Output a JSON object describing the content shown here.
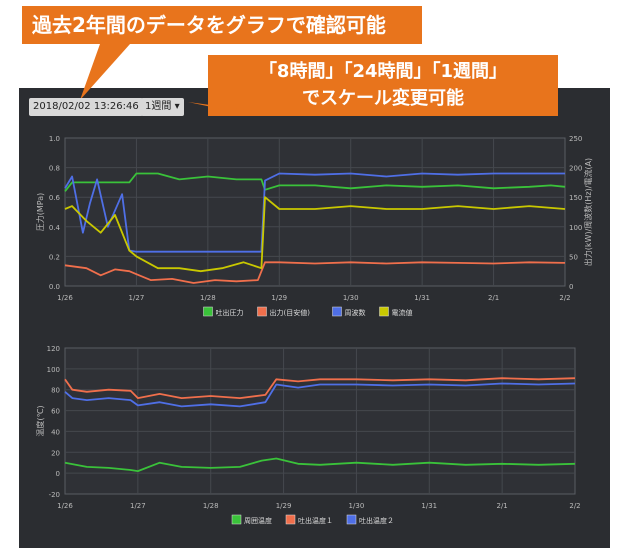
{
  "callouts": {
    "top": "過去2年間のデータをグラフで確認可能",
    "scale_line1": "「8時間」「24時間」「1週間」",
    "scale_line2": "でスケール変更可能"
  },
  "toolbar": {
    "datetime": "2018/02/02 13:26:46",
    "range_label": "1週間",
    "range_caret": "▾"
  },
  "colors": {
    "green": "#3ac23a",
    "red": "#f06f4c",
    "blue": "#4f6fe6",
    "yellow": "#c9c800"
  },
  "chart_data": [
    {
      "type": "line",
      "ylabel": "圧力(MPa)",
      "y2label": "出力(kW)/周波数(Hz)/電流(A)",
      "ylim": [
        0,
        1.0
      ],
      "yticks": [
        "0.0",
        "0.2",
        "0.4",
        "0.6",
        "0.8",
        "1.0"
      ],
      "y2lim": [
        0,
        250
      ],
      "y2ticks": [
        "0",
        "50",
        "100",
        "150",
        "200",
        "250"
      ],
      "xticks": [
        "1/26",
        "1/27",
        "1/28",
        "1/29",
        "1/30",
        "1/31",
        "2/1",
        "2/2"
      ],
      "xlim": [
        0,
        7
      ],
      "legend_position": "bottom",
      "series": [
        {
          "name": "吐出圧力",
          "axis": "left",
          "color": "green",
          "x": [
            0,
            0.1,
            0.3,
            0.6,
            0.9,
            1.0,
            1.3,
            1.6,
            2.0,
            2.4,
            2.75,
            2.8,
            3.0,
            3.5,
            4.0,
            4.5,
            5.0,
            5.5,
            6.0,
            6.5,
            6.8,
            7.0
          ],
          "y": [
            0.64,
            0.7,
            0.7,
            0.7,
            0.7,
            0.76,
            0.76,
            0.72,
            0.74,
            0.72,
            0.72,
            0.65,
            0.68,
            0.68,
            0.66,
            0.68,
            0.67,
            0.68,
            0.66,
            0.67,
            0.68,
            0.67
          ]
        },
        {
          "name": "出力(目安値)",
          "axis": "right",
          "color": "red",
          "x": [
            0,
            0.3,
            0.5,
            0.7,
            0.9,
            1.0,
            1.2,
            1.5,
            1.8,
            2.1,
            2.4,
            2.7,
            2.8,
            3.0,
            3.5,
            4.0,
            4.5,
            5.0,
            5.5,
            6.0,
            6.5,
            7.0
          ],
          "y": [
            35,
            30,
            18,
            28,
            25,
            20,
            10,
            12,
            5,
            10,
            8,
            10,
            40,
            40,
            38,
            40,
            38,
            40,
            39,
            38,
            40,
            39
          ]
        },
        {
          "name": "周波数",
          "axis": "right",
          "color": "blue",
          "x": [
            0,
            0.1,
            0.25,
            0.35,
            0.45,
            0.6,
            0.8,
            0.9,
            1.0,
            2.0,
            2.75,
            2.8,
            3.0,
            3.5,
            4.0,
            4.5,
            5.0,
            5.5,
            6.0,
            6.5,
            7.0
          ],
          "y": [
            165,
            185,
            90,
            140,
            180,
            100,
            155,
            60,
            58,
            58,
            58,
            178,
            190,
            188,
            190,
            185,
            190,
            188,
            190,
            190,
            190
          ]
        },
        {
          "name": "電流値",
          "axis": "right",
          "color": "yellow",
          "x": [
            0,
            0.1,
            0.3,
            0.5,
            0.7,
            0.9,
            1.0,
            1.3,
            1.6,
            1.9,
            2.2,
            2.5,
            2.75,
            2.8,
            3.0,
            3.5,
            4.0,
            4.5,
            5.0,
            5.5,
            6.0,
            6.5,
            7.0
          ],
          "y": [
            130,
            135,
            110,
            90,
            120,
            60,
            50,
            30,
            30,
            25,
            30,
            40,
            30,
            150,
            130,
            130,
            135,
            130,
            130,
            135,
            130,
            135,
            130
          ]
        }
      ]
    },
    {
      "type": "line",
      "ylabel": "温度(℃)",
      "ylim": [
        -20,
        120
      ],
      "yticks": [
        "-20",
        "0",
        "20",
        "40",
        "60",
        "80",
        "100",
        "120"
      ],
      "xticks": [
        "1/26",
        "1/27",
        "1/28",
        "1/29",
        "1/30",
        "1/31",
        "2/1",
        "2/2"
      ],
      "xlim": [
        0,
        7
      ],
      "legend_position": "bottom",
      "series": [
        {
          "name": "周囲温度",
          "color": "green",
          "x": [
            0,
            0.3,
            0.6,
            0.9,
            1.0,
            1.3,
            1.6,
            2.0,
            2.4,
            2.7,
            2.9,
            3.2,
            3.5,
            4.0,
            4.5,
            5.0,
            5.5,
            6.0,
            6.5,
            7.0
          ],
          "y": [
            10,
            6,
            5,
            3,
            2,
            10,
            6,
            5,
            6,
            12,
            14,
            9,
            8,
            10,
            8,
            10,
            8,
            9,
            8,
            9
          ]
        },
        {
          "name": "吐出温度１",
          "color": "red",
          "x": [
            0,
            0.1,
            0.3,
            0.6,
            0.9,
            1.0,
            1.3,
            1.6,
            2.0,
            2.4,
            2.75,
            2.9,
            3.2,
            3.5,
            4.0,
            4.5,
            5.0,
            5.5,
            6.0,
            6.5,
            7.0
          ],
          "y": [
            90,
            80,
            78,
            80,
            79,
            72,
            76,
            72,
            74,
            72,
            75,
            90,
            88,
            90,
            90,
            89,
            90,
            89,
            91,
            90,
            91
          ]
        },
        {
          "name": "吐出温度２",
          "color": "blue",
          "x": [
            0,
            0.1,
            0.3,
            0.6,
            0.9,
            1.0,
            1.3,
            1.6,
            2.0,
            2.4,
            2.75,
            2.9,
            3.2,
            3.5,
            4.0,
            4.5,
            5.0,
            5.5,
            6.0,
            6.5,
            7.0
          ],
          "y": [
            78,
            72,
            70,
            72,
            70,
            65,
            68,
            64,
            66,
            64,
            68,
            85,
            82,
            85,
            85,
            84,
            85,
            84,
            86,
            85,
            86
          ]
        }
      ]
    }
  ]
}
